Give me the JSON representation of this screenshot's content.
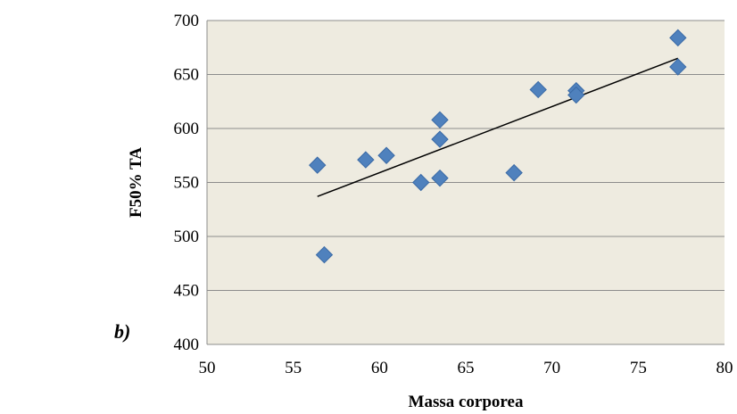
{
  "panel_label": "b)",
  "colors": {
    "plot_background": "#eeebe0",
    "gridline": "#8c8c8c",
    "marker": "#4f81bd",
    "marker_edge": "#3a6aa6",
    "trendline": "#000000"
  },
  "chart_data": {
    "type": "scatter",
    "title": "",
    "xlabel": "Massa corporea",
    "ylabel": "F50% TA",
    "xlim": [
      50,
      80
    ],
    "ylim": [
      400,
      700
    ],
    "xticks": [
      50,
      55,
      60,
      65,
      70,
      75,
      80
    ],
    "yticks": [
      400,
      450,
      500,
      550,
      600,
      650,
      700
    ],
    "grid": "horizontal",
    "marker": "diamond",
    "points": [
      {
        "x": 56.4,
        "y": 566
      },
      {
        "x": 56.8,
        "y": 483
      },
      {
        "x": 59.2,
        "y": 571
      },
      {
        "x": 60.4,
        "y": 575
      },
      {
        "x": 62.4,
        "y": 550
      },
      {
        "x": 63.5,
        "y": 608
      },
      {
        "x": 63.5,
        "y": 590
      },
      {
        "x": 63.5,
        "y": 554
      },
      {
        "x": 67.8,
        "y": 559
      },
      {
        "x": 69.2,
        "y": 636
      },
      {
        "x": 71.4,
        "y": 635
      },
      {
        "x": 71.4,
        "y": 631
      },
      {
        "x": 77.3,
        "y": 684
      },
      {
        "x": 77.3,
        "y": 657
      }
    ],
    "trendline": {
      "type": "linear",
      "x": [
        56.4,
        77.3
      ],
      "y": [
        537,
        665
      ]
    }
  }
}
